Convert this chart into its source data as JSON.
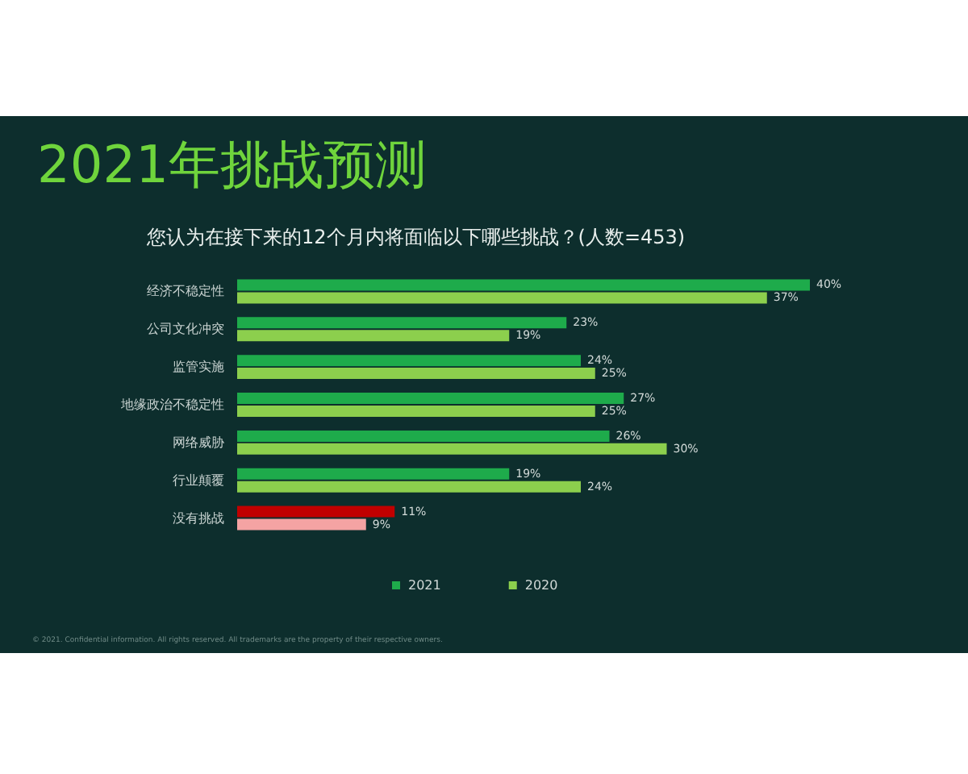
{
  "chart_data": {
    "type": "bar",
    "orientation": "horizontal",
    "title": "2021年挑战预测",
    "subtitle": "您认为在接下来的12个月内将面临以下哪些挑战？(人数=453)",
    "categories": [
      "经济不稳定性",
      "公司文化冲突",
      "监管实施",
      "地缘政治不稳定性",
      "网络威胁",
      "行业颠覆",
      "没有挑战"
    ],
    "series": [
      {
        "name": "2021",
        "color": "#1eab4b",
        "colors": [
          "#1eab4b",
          "#1eab4b",
          "#1eab4b",
          "#1eab4b",
          "#1eab4b",
          "#1eab4b",
          "#c00000"
        ],
        "values": [
          40,
          23,
          24,
          27,
          26,
          19,
          11
        ],
        "value_labels": [
          "40%",
          "23%",
          "24%",
          "27%",
          "26%",
          "19%",
          "11%"
        ]
      },
      {
        "name": "2020",
        "color": "#8ccf4d",
        "colors": [
          "#8ccf4d",
          "#8ccf4d",
          "#8ccf4d",
          "#8ccf4d",
          "#8ccf4d",
          "#8ccf4d",
          "#f4a3a3"
        ],
        "values": [
          37,
          19,
          25,
          25,
          30,
          24,
          9
        ],
        "value_labels": [
          "37%",
          "19%",
          "25%",
          "25%",
          "30%",
          "24%",
          "9%"
        ]
      }
    ],
    "legend": "bottom",
    "annotations": [
      "© 2021. Confidential information. All rights reserved. All trademarks are the property of their respective owners."
    ]
  }
}
